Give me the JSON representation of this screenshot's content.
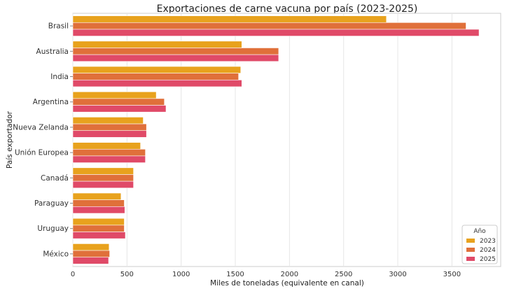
{
  "chart_data": {
    "type": "bar",
    "orientation": "horizontal",
    "title": "Exportaciones de carne vacuna por país (2023-2025)",
    "xlabel": "Miles de toneladas (equivalente en canal)",
    "ylabel": "País exportador",
    "categories": [
      "Brasil",
      "Australia",
      "India",
      "Argentina",
      "Nueva Zelanda",
      "Unión Europea",
      "Canadá",
      "Paraguay",
      "Uruguay",
      "México"
    ],
    "series": [
      {
        "name": "2023",
        "color": "#e8a21d",
        "values": [
          2895,
          1560,
          1550,
          770,
          650,
          625,
          560,
          445,
          475,
          335
        ]
      },
      {
        "name": "2024",
        "color": "#e0703a",
        "values": [
          3630,
          1900,
          1530,
          845,
          680,
          670,
          560,
          475,
          475,
          340
        ]
      },
      {
        "name": "2025",
        "color": "#e04a68",
        "values": [
          3750,
          1900,
          1560,
          860,
          680,
          670,
          560,
          480,
          485,
          330
        ]
      }
    ],
    "xlim": [
      0,
      3950
    ],
    "xticks": [
      "0",
      "500",
      "1000",
      "1500",
      "2000",
      "2500",
      "3000",
      "3500"
    ],
    "grid": "vertical",
    "legend": {
      "title": "Año",
      "position": "bottom-right"
    }
  }
}
